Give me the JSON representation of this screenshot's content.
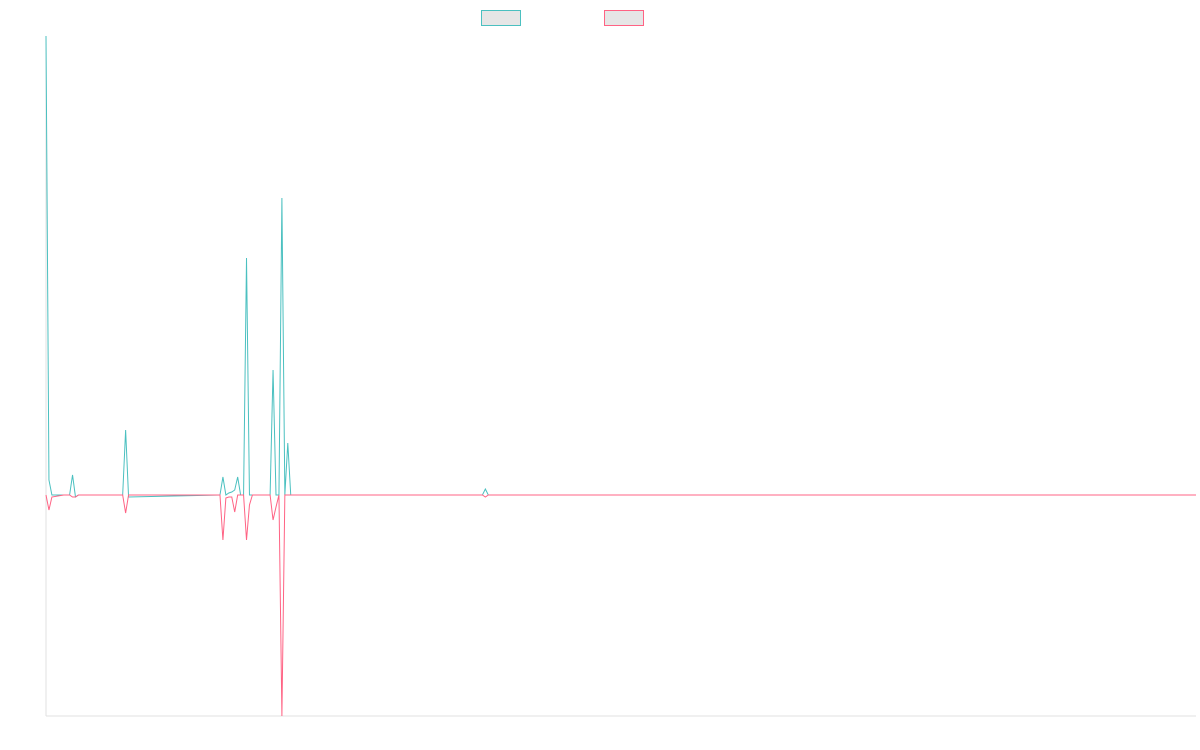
{
  "chart_data": {
    "type": "line",
    "legend": "top",
    "grid": false,
    "x": [
      0,
      1,
      2,
      6,
      8,
      9,
      10,
      11,
      26,
      27,
      28,
      59,
      60,
      61,
      62,
      63,
      64,
      65,
      66,
      67,
      68,
      69,
      70,
      76,
      77,
      78,
      79,
      80,
      81,
      82,
      83,
      148,
      149,
      150,
      390
    ],
    "xlim": [
      0,
      390
    ],
    "ylim": [
      -221,
      459
    ],
    "series": [
      {
        "color": "#4bc0c0",
        "values": [
          459,
          15,
          0,
          0,
          0,
          20,
          -2,
          0,
          0,
          65,
          -2,
          0,
          18,
          0,
          2,
          3,
          5,
          18,
          0,
          0,
          237,
          0,
          0,
          0,
          125,
          0,
          0,
          297,
          0,
          52,
          0,
          0,
          6,
          0,
          0
        ]
      },
      {
        "color": "#ff6384",
        "values": [
          0,
          -15,
          -2,
          0,
          0,
          -2,
          -2,
          0,
          0,
          -18,
          0,
          0,
          -45,
          -3,
          -2,
          -2,
          -17,
          0,
          0,
          0,
          -45,
          -10,
          0,
          0,
          -25,
          -12,
          0,
          -221,
          0,
          0,
          0,
          0,
          -2,
          0,
          0
        ]
      }
    ]
  }
}
